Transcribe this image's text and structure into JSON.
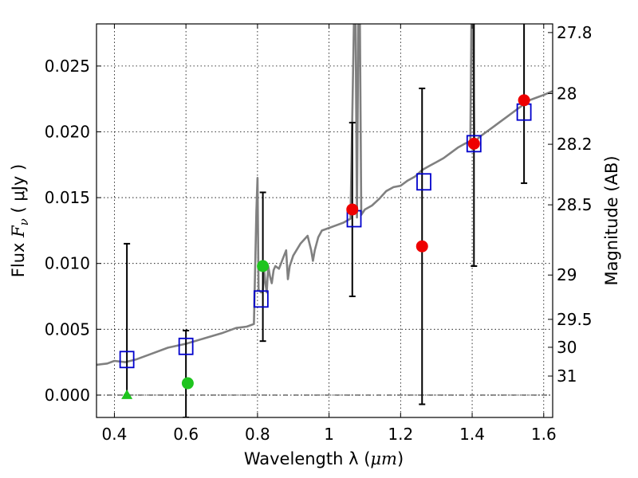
{
  "chart_data": {
    "type": "scatter",
    "xlabel_text": "Wavelength  λ (",
    "xlabel_unit": "μm",
    "xlabel_close": ")",
    "ylabel_prefix": "Flux  ",
    "ylabel_symbol": "F",
    "ylabel_sub": "ν",
    "ylabel_suffix": "  ( μJy )",
    "y2label": "Magnitude (AB)",
    "xlim": [
      0.35,
      1.625
    ],
    "ylim": [
      -0.0017,
      0.0282
    ],
    "grid": true,
    "x_ticks": [
      0.4,
      0.6,
      0.8,
      1.0,
      1.2,
      1.4,
      1.6
    ],
    "x_tick_labels": [
      "0.4",
      "0.6",
      "0.8",
      "1",
      "1.2",
      "1.4",
      "1.6"
    ],
    "y_ticks": [
      0.0,
      0.005,
      0.01,
      0.015,
      0.02,
      0.025
    ],
    "y_tick_labels": [
      "0.000",
      "0.005",
      "0.010",
      "0.015",
      "0.020",
      "0.025"
    ],
    "mag_ticks": [
      27.8,
      28.0,
      28.2,
      28.5,
      29.0,
      29.5,
      30.0,
      31.0
    ],
    "mag_tick_labels": [
      "27.8",
      "28",
      "28.2",
      "28.5",
      "29",
      "29.5",
      "30",
      "31"
    ],
    "colors": {
      "sed": "#808080",
      "model_box": "#0000cc",
      "red": "#ee0000",
      "green": "#1ec41e",
      "errorbar": "#000000",
      "zero_line": "#000000"
    },
    "sed_spectrum": {
      "x": [
        0.35,
        0.38,
        0.4,
        0.43,
        0.46,
        0.5,
        0.55,
        0.6,
        0.65,
        0.7,
        0.74,
        0.77,
        0.79,
        0.797,
        0.8,
        0.803,
        0.81,
        0.815,
        0.818,
        0.822,
        0.826,
        0.83,
        0.835,
        0.84,
        0.845,
        0.85,
        0.86,
        0.87,
        0.88,
        0.885,
        0.89,
        0.9,
        0.92,
        0.94,
        0.95,
        0.955,
        0.96,
        0.97,
        0.98,
        1.0,
        1.02,
        1.04,
        1.06,
        1.07,
        1.074,
        1.078,
        1.082,
        1.086,
        1.09,
        1.1,
        1.12,
        1.14,
        1.16,
        1.18,
        1.2,
        1.22,
        1.24,
        1.26,
        1.28,
        1.3,
        1.32,
        1.34,
        1.36,
        1.38,
        1.395,
        1.398,
        1.402,
        1.406,
        1.41,
        1.42,
        1.44,
        1.46,
        1.48,
        1.5,
        1.52,
        1.54,
        1.56,
        1.58,
        1.6,
        1.625
      ],
      "y": [
        0.0023,
        0.0024,
        0.0026,
        0.0025,
        0.0027,
        0.0031,
        0.0036,
        0.0039,
        0.0043,
        0.0047,
        0.0051,
        0.0052,
        0.0054,
        0.014,
        0.0165,
        0.008,
        0.0078,
        0.0079,
        0.0096,
        0.0085,
        0.0078,
        0.0098,
        0.009,
        0.0085,
        0.0095,
        0.0098,
        0.0096,
        0.0103,
        0.011,
        0.0088,
        0.0098,
        0.0106,
        0.0115,
        0.0121,
        0.011,
        0.0102,
        0.011,
        0.012,
        0.0125,
        0.0127,
        0.0129,
        0.0131,
        0.0134,
        0.029,
        0.029,
        0.0135,
        0.029,
        0.029,
        0.0137,
        0.0141,
        0.0144,
        0.0149,
        0.0155,
        0.0158,
        0.0159,
        0.0163,
        0.0166,
        0.0171,
        0.0174,
        0.0177,
        0.018,
        0.0184,
        0.0188,
        0.0191,
        0.0193,
        0.029,
        0.029,
        0.0192,
        0.0193,
        0.0196,
        0.02,
        0.0204,
        0.0208,
        0.0212,
        0.0216,
        0.022,
        0.0224,
        0.0226,
        0.0228,
        0.0231
      ]
    },
    "model_boxes": {
      "x": [
        0.435,
        0.6,
        0.81,
        1.07,
        1.265,
        1.405,
        1.545
      ],
      "y": [
        0.0027,
        0.0037,
        0.0073,
        0.0134,
        0.0162,
        0.0191,
        0.0215
      ]
    },
    "observed_red": {
      "x": [
        1.065,
        1.26,
        1.405,
        1.545
      ],
      "y": [
        0.0141,
        0.0113,
        0.0191,
        0.0224
      ]
    },
    "observed_green": {
      "x": [
        0.605,
        0.815
      ],
      "y": [
        0.0009,
        0.0098
      ]
    },
    "upper_limit_green": {
      "x": [
        0.435
      ],
      "y": [
        0.0
      ]
    },
    "error_bars": [
      {
        "x": 0.435,
        "low": 0.0,
        "high": 0.0115
      },
      {
        "x": 0.6,
        "low": -0.0017,
        "high": 0.0049
      },
      {
        "x": 0.815,
        "low": 0.0041,
        "high": 0.0154
      },
      {
        "x": 1.065,
        "low": 0.0075,
        "high": 0.0207
      },
      {
        "x": 1.26,
        "low": -0.0007,
        "high": 0.0233
      },
      {
        "x": 1.405,
        "low": 0.0098,
        "high": 0.029
      },
      {
        "x": 1.545,
        "low": 0.0161,
        "high": 0.029
      }
    ]
  }
}
